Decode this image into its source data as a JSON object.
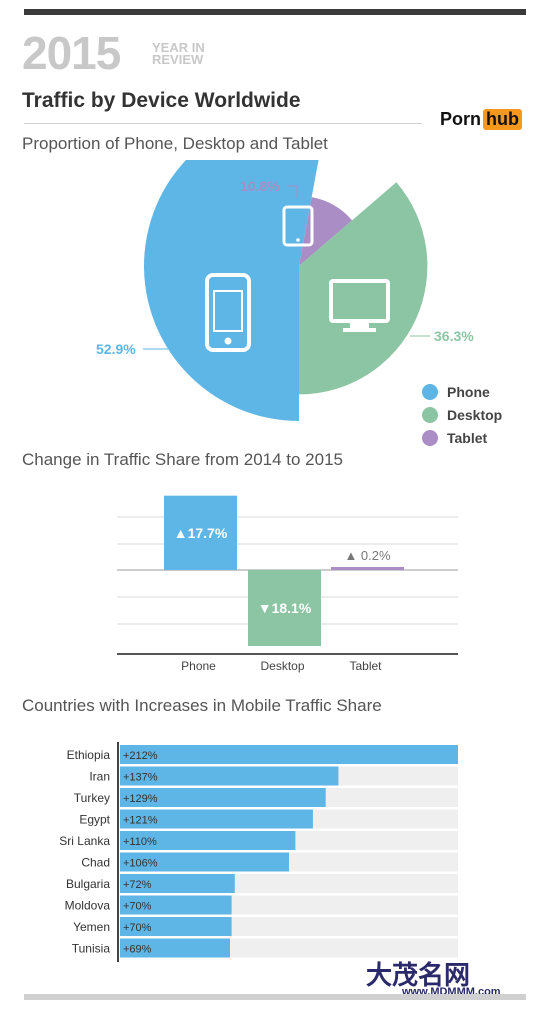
{
  "header": {
    "year": "2015",
    "year_line1": "YEAR IN",
    "year_line2": "REVIEW",
    "title": "Traffic by Device Worldwide",
    "logo_left": "Porn",
    "logo_right": "hub"
  },
  "sections": {
    "proportion": "Proportion of Phone, Desktop and Tablet",
    "change": "Change in Traffic Share from 2014 to 2015",
    "countries": "Countries with Increases in Mobile Traffic Share"
  },
  "colors": {
    "phone": "#5db6e6",
    "desktop": "#8cc5a3",
    "tablet": "#a98dc4",
    "bar_bg": "#efefef",
    "grid": "#d8d8d8"
  },
  "chart_data": [
    {
      "type": "pie",
      "title": "Proportion of Phone, Desktop and Tablet",
      "labels": [
        "Phone",
        "Desktop",
        "Tablet"
      ],
      "values": [
        52.9,
        36.3,
        10.8
      ],
      "value_labels": [
        "52.9%",
        "36.3%",
        "10.8%"
      ],
      "legend": [
        "Phone",
        "Desktop",
        "Tablet"
      ],
      "legend_position": "bottom-right"
    },
    {
      "type": "bar",
      "title": "Change in Traffic Share from 2014 to 2015",
      "categories": [
        "Phone",
        "Desktop",
        "Tablet"
      ],
      "values": [
        17.7,
        -18.1,
        0.2
      ],
      "value_labels": [
        "▲17.7%",
        "▼18.1%",
        "▲ 0.2%"
      ],
      "grid": true
    },
    {
      "type": "bar",
      "orientation": "horizontal",
      "title": "Countries with Increases in Mobile Traffic Share",
      "categories": [
        "Ethiopia",
        "Iran",
        "Turkey",
        "Egypt",
        "Sri Lanka",
        "Chad",
        "Bulgaria",
        "Moldova",
        "Yemen",
        "Tunisia"
      ],
      "values": [
        212,
        137,
        129,
        121,
        110,
        106,
        72,
        70,
        70,
        69
      ],
      "value_labels": [
        "+212%",
        "+137%",
        "+129%",
        "+121%",
        "+110%",
        "+106%",
        "+72%",
        "+70%",
        "+70%",
        "+69%"
      ],
      "xlim": [
        0,
        212
      ]
    }
  ],
  "watermark": {
    "text": "大茂名网",
    "url": "www.MDMMM.com"
  }
}
